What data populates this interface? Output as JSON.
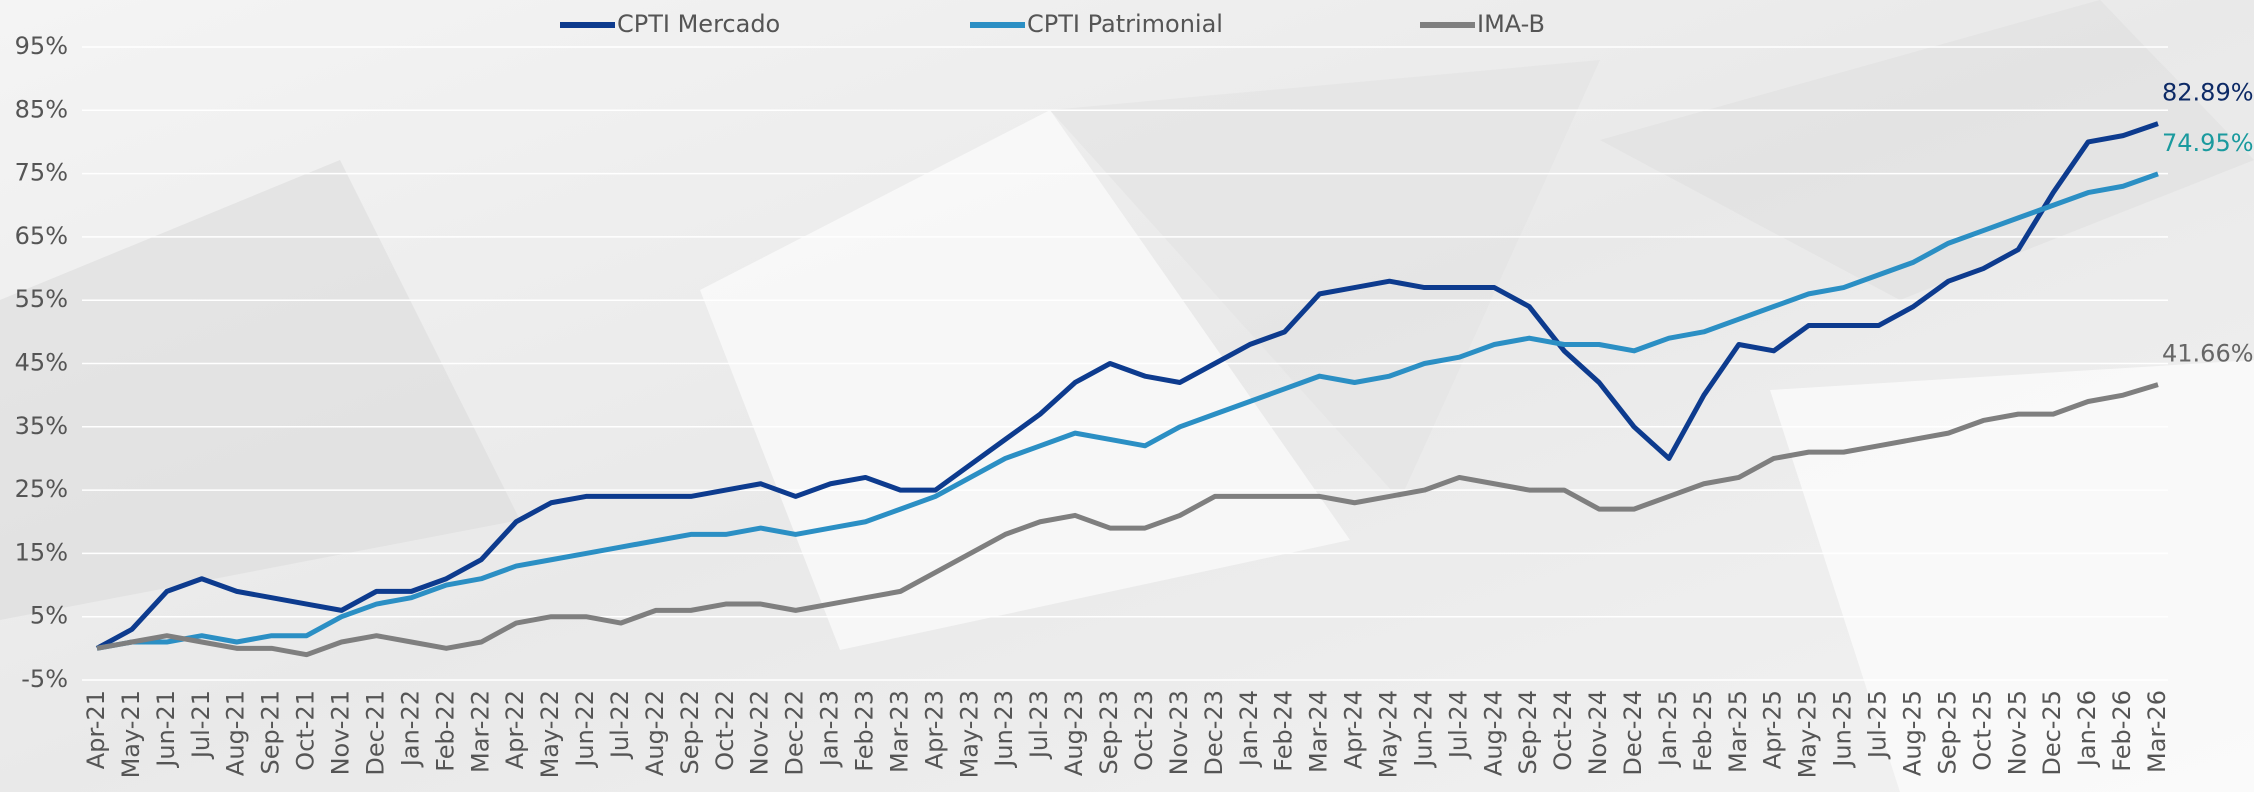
{
  "chart_data": {
    "type": "line",
    "categories": [
      "Apr-21",
      "May-21",
      "Jun-21",
      "Jul-21",
      "Aug-21",
      "Sep-21",
      "Oct-21",
      "Nov-21",
      "Dec-21",
      "Jan-22",
      "Feb-22",
      "Mar-22",
      "Apr-22",
      "May-22",
      "Jun-22",
      "Jul-22",
      "Aug-22",
      "Sep-22",
      "Oct-22",
      "Nov-22",
      "Dec-22",
      "Jan-23",
      "Feb-23",
      "Mar-23",
      "Apr-23",
      "May-23",
      "Jun-23",
      "Jul-23",
      "Aug-23",
      "Sep-23",
      "Oct-23",
      "Nov-23",
      "Dec-23",
      "Jan-24",
      "Feb-24",
      "Mar-24",
      "Apr-24",
      "May-24",
      "Jun-24",
      "Jul-24",
      "Aug-24",
      "Sep-24",
      "Oct-24",
      "Nov-24",
      "Dec-24",
      "Jan-25",
      "Feb-25",
      "Mar-25",
      "Apr-25",
      "May-25",
      "Jun-25",
      "Jul-25",
      "Aug-25",
      "Sep-25",
      "Oct-25",
      "Nov-25",
      "Dec-25",
      "Jan-26",
      "Feb-26",
      "Mar-26"
    ],
    "series": [
      {
        "name": "CPTI Mercado",
        "color": "#0d3b8e",
        "label_color": "#0d2a66",
        "values": [
          0,
          3,
          9,
          11,
          9,
          8,
          7,
          6,
          9,
          9,
          11,
          14,
          20,
          23,
          24,
          24,
          24,
          24,
          25,
          26,
          24,
          26,
          27,
          25,
          25,
          29,
          33,
          37,
          42,
          45,
          43,
          42,
          45,
          48,
          50,
          56,
          57,
          58,
          57,
          57,
          57,
          54,
          47,
          42,
          35,
          30,
          40,
          48,
          47,
          51,
          51,
          51,
          54,
          58,
          60,
          63,
          72,
          80,
          81,
          82.89
        ],
        "value_labels": [
          null,
          null,
          null,
          null,
          null,
          null,
          null,
          null,
          null,
          null,
          null,
          null,
          null,
          null,
          null,
          null,
          null,
          null,
          null,
          null,
          null,
          null,
          null,
          null,
          null,
          null,
          null,
          null,
          null,
          null,
          null,
          null,
          null,
          null,
          null,
          null,
          null,
          null,
          null,
          null,
          null,
          null,
          null,
          null,
          null,
          null,
          null,
          null,
          null,
          null,
          null,
          null,
          null,
          null,
          null,
          null,
          null,
          null,
          null,
          "82.89%"
        ]
      },
      {
        "name": "CPTI Patrimonial",
        "color": "#2b8fc4",
        "label_color": "#1a9a9e",
        "values": [
          0,
          1,
          1,
          2,
          1,
          2,
          2,
          5,
          7,
          8,
          10,
          11,
          13,
          14,
          15,
          16,
          17,
          18,
          18,
          19,
          18,
          19,
          20,
          22,
          24,
          27,
          30,
          32,
          34,
          33,
          32,
          35,
          37,
          39,
          41,
          43,
          42,
          43,
          45,
          46,
          48,
          49,
          48,
          48,
          47,
          49,
          50,
          52,
          54,
          56,
          57,
          59,
          61,
          64,
          66,
          68,
          70,
          72,
          73,
          74.95
        ],
        "value_labels": [
          null,
          null,
          null,
          null,
          null,
          null,
          null,
          null,
          null,
          null,
          null,
          null,
          null,
          null,
          null,
          null,
          null,
          null,
          null,
          null,
          null,
          null,
          null,
          null,
          null,
          null,
          null,
          null,
          null,
          null,
          null,
          null,
          null,
          null,
          null,
          null,
          null,
          null,
          null,
          null,
          null,
          null,
          null,
          null,
          null,
          null,
          null,
          null,
          null,
          null,
          null,
          null,
          null,
          null,
          null,
          null,
          null,
          null,
          null,
          "74.95%"
        ]
      },
      {
        "name": "IMA-B",
        "color": "#7f7f7f",
        "label_color": "#666666",
        "values": [
          0,
          1,
          2,
          1,
          0,
          0,
          -1,
          1,
          2,
          1,
          0,
          1,
          4,
          5,
          5,
          4,
          6,
          6,
          7,
          7,
          6,
          7,
          8,
          9,
          12,
          15,
          18,
          20,
          21,
          19,
          19,
          21,
          24,
          24,
          24,
          24,
          23,
          24,
          25,
          27,
          26,
          25,
          25,
          22,
          22,
          24,
          26,
          27,
          30,
          31,
          31,
          32,
          33,
          34,
          36,
          37,
          37,
          39,
          40,
          41.66
        ],
        "value_labels": [
          null,
          null,
          null,
          null,
          null,
          null,
          null,
          null,
          null,
          null,
          null,
          null,
          null,
          null,
          null,
          null,
          null,
          null,
          null,
          null,
          null,
          null,
          null,
          null,
          null,
          null,
          null,
          null,
          null,
          null,
          null,
          null,
          null,
          null,
          null,
          null,
          null,
          null,
          null,
          null,
          null,
          null,
          null,
          null,
          null,
          null,
          null,
          null,
          null,
          null,
          null,
          null,
          null,
          null,
          null,
          null,
          null,
          null,
          null,
          "41.66%"
        ]
      }
    ],
    "ylim": [
      -5,
      95
    ],
    "yticks": [
      {
        "value": -5,
        "label": "-5%"
      },
      {
        "value": 5,
        "label": "5%"
      },
      {
        "value": 15,
        "label": "15%"
      },
      {
        "value": 25,
        "label": "25%"
      },
      {
        "value": 35,
        "label": "35%"
      },
      {
        "value": 45,
        "label": "45%"
      },
      {
        "value": 55,
        "label": "55%"
      },
      {
        "value": 65,
        "label": "65%"
      },
      {
        "value": 75,
        "label": "75%"
      },
      {
        "value": 85,
        "label": "85%"
      },
      {
        "value": 95,
        "label": "95%"
      }
    ],
    "grid": true,
    "legend": "top"
  }
}
